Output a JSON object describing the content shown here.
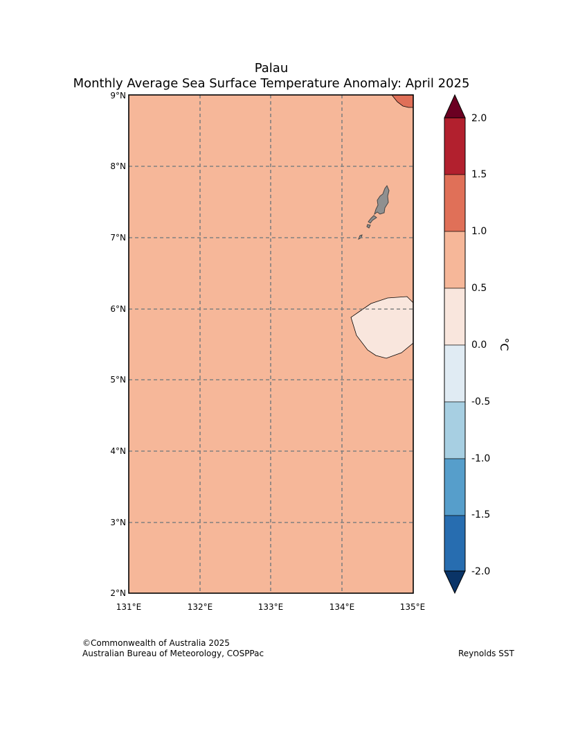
{
  "title": "Palau",
  "subtitle": "Monthly Average Sea Surface Temperature Anomaly: April 2025",
  "map": {
    "lat_ticks": [
      "9°N",
      "8°N",
      "7°N",
      "6°N",
      "5°N",
      "4°N",
      "3°N",
      "2°N"
    ],
    "lon_ticks": [
      "131°E",
      "132°E",
      "133°E",
      "134°E",
      "135°E"
    ],
    "background_color": "#f6b799",
    "warm_patch_color": "#e07058",
    "cool_patch_color": "#f9e6dd",
    "land_color": "#909090",
    "gridline_color": "#808080"
  },
  "colorbar": {
    "unit": "°C",
    "tick_labels": [
      "2.0",
      "1.5",
      "1.0",
      "0.5",
      "0.0",
      "-0.5",
      "-1.0",
      "-1.5",
      "-2.0"
    ],
    "colors": [
      "#b2202e",
      "#e07058",
      "#f6b799",
      "#f9e6dd",
      "#e0ebf3",
      "#a7cfe2",
      "#569ecb",
      "#276db0"
    ],
    "over_color": "#6b0022",
    "under_color": "#0a3467"
  },
  "footer": {
    "credit_line1": "©Commonwealth of Australia 2025",
    "credit_line2": "Australian Bureau of Meteorology, COSPPac",
    "source": "Reynolds SST"
  }
}
